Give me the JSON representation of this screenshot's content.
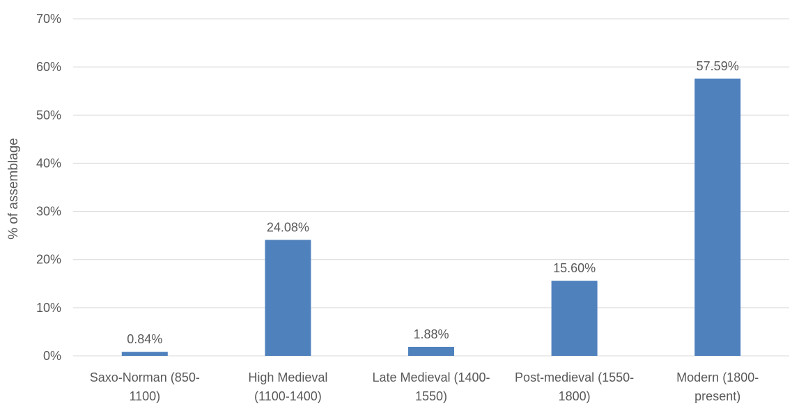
{
  "chart_data": {
    "type": "bar",
    "title": "",
    "xlabel": "",
    "ylabel": "% of assemblage",
    "ylim": [
      0,
      70
    ],
    "yticks": [
      "0%",
      "10%",
      "20%",
      "30%",
      "40%",
      "50%",
      "60%",
      "70%"
    ],
    "ytick_values": [
      0,
      10,
      20,
      30,
      40,
      50,
      60,
      70
    ],
    "grid": true,
    "legend": "none",
    "bar_color": "#4f81bd",
    "categories": [
      [
        "Saxo-Norman (850-",
        "1100)"
      ],
      [
        "High Medieval",
        "(1100-1400)"
      ],
      [
        "Late Medieval (1400-",
        "1550)"
      ],
      [
        "Post-medieval (1550-",
        "1800)"
      ],
      [
        "Modern (1800-",
        "present)"
      ]
    ],
    "values": [
      0.84,
      24.08,
      1.88,
      15.6,
      57.59
    ],
    "data_labels": [
      "0.84%",
      "24.08%",
      "1.88%",
      "15.60%",
      "57.59%"
    ]
  }
}
